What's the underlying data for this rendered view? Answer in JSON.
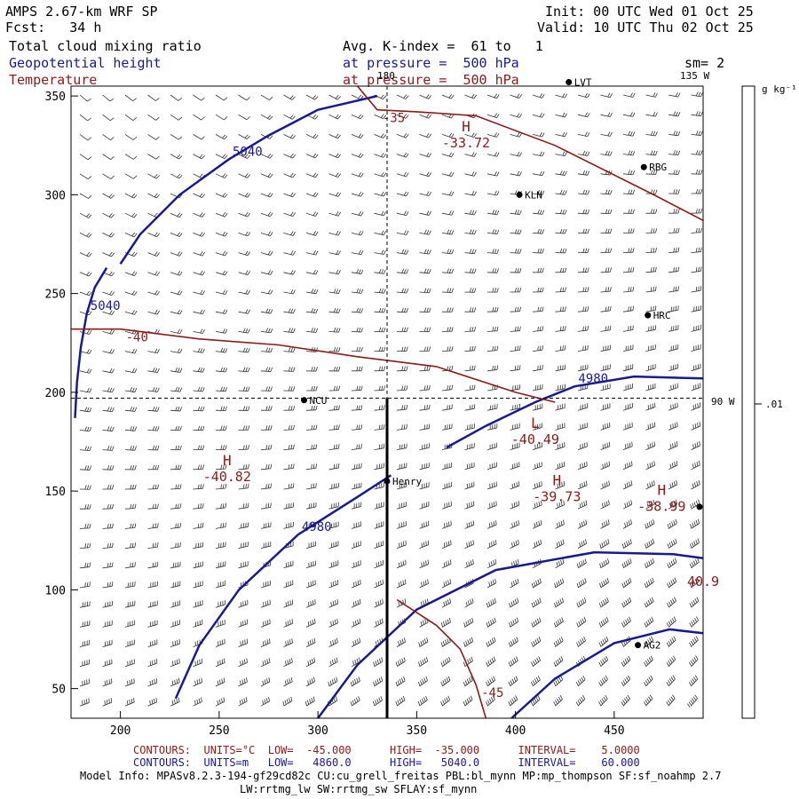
{
  "header": {
    "model": "AMPS 2.67-km WRF SP",
    "fcst": "Fcst:   34 h",
    "init": "Init: 00 UTC Wed 01 Oct 25",
    "valid": "Valid: 10 UTC Thu 02 Oct 25",
    "field1": "Total cloud mixing ratio",
    "field1_info": "Avg. K-index =  61 to   1",
    "field2": "Geopotential height",
    "field2_info": "at pressure =  500 hPa",
    "field3": "Temperature",
    "field3_info": "at pressure =  500 hPa",
    "sm": "sm= 2",
    "lon_135": "135 W",
    "lon_90": "90 W",
    "lon_180": "180"
  },
  "colorbar": {
    "unit": "g kg⁻¹",
    "value": ".01"
  },
  "colors": {
    "height": "#1a1a8c",
    "temperature": "#8b1a1a",
    "cross": "#000000"
  },
  "footer": {
    "temp_contours": "CONTOURS:  UNITS=°C  LOW=  -45.000      HIGH=  -35.000      INTERVAL=    5.0000",
    "height_contours": "CONTOURS:  UNITS=m   LOW=   4860.0      HIGH=   5040.0      INTERVAL=    60.000",
    "model_info": "Model Info: MPASv8.2.3-194-gf29cd82c CU:cu_grell_freitas PBL:bl_mynn MP:mp_thompson SF:sf_noahmp 2.7",
    "model_info2": "LW:rrtmg_lw SW:rrtmg_sw SFLAY:sf_mynn"
  },
  "chart_data": {
    "type": "contour_map",
    "xlim": [
      175,
      495
    ],
    "ylim": [
      35,
      355
    ],
    "x_ticks": [
      200,
      250,
      300,
      350,
      400,
      450
    ],
    "y_ticks": [
      50,
      100,
      150,
      200,
      250,
      300,
      350
    ],
    "height_contours": [
      {
        "label": "5040",
        "points": [
          [
            177,
            187
          ],
          [
            178,
            205
          ],
          [
            180,
            223
          ],
          [
            183,
            240
          ],
          [
            187,
            253
          ],
          [
            193,
            263
          ]
        ]
      },
      {
        "label": "5040",
        "points": [
          [
            200,
            265
          ],
          [
            210,
            280
          ],
          [
            230,
            300
          ],
          [
            255,
            318
          ],
          [
            275,
            330
          ],
          [
            300,
            343
          ],
          [
            330,
            350
          ]
        ]
      },
      {
        "label": "4980",
        "points": [
          [
            365,
            172
          ],
          [
            385,
            183
          ],
          [
            410,
            195
          ],
          [
            430,
            203
          ],
          [
            460,
            208
          ],
          [
            495,
            207
          ]
        ]
      },
      {
        "label": "4980",
        "points": [
          [
            228,
            45
          ],
          [
            240,
            72
          ],
          [
            260,
            100
          ],
          [
            290,
            128
          ],
          [
            320,
            147
          ],
          [
            337,
            158
          ]
        ]
      },
      {
        "label": "",
        "points": [
          [
            300,
            35
          ],
          [
            320,
            62
          ],
          [
            350,
            90
          ],
          [
            390,
            110
          ],
          [
            440,
            119
          ],
          [
            480,
            118
          ],
          [
            495,
            116
          ]
        ]
      },
      {
        "label": "",
        "points": [
          [
            398,
            35
          ],
          [
            420,
            55
          ],
          [
            450,
            73
          ],
          [
            478,
            80
          ],
          [
            495,
            78
          ]
        ]
      }
    ],
    "temperature_contours": [
      {
        "label": "-35",
        "points": [
          [
            320,
            355
          ],
          [
            330,
            343
          ],
          [
            350,
            342
          ],
          [
            380,
            340
          ],
          [
            420,
            325
          ],
          [
            470,
            300
          ],
          [
            495,
            287
          ]
        ]
      },
      {
        "label": "-40",
        "points": [
          [
            175,
            232
          ],
          [
            200,
            232
          ],
          [
            240,
            227
          ],
          [
            280,
            224
          ],
          [
            320,
            218
          ],
          [
            360,
            213
          ],
          [
            400,
            200
          ],
          [
            420,
            195
          ]
        ]
      },
      {
        "label": "-45",
        "points": [
          [
            385,
            35
          ],
          [
            380,
            52
          ],
          [
            372,
            70
          ],
          [
            360,
            82
          ],
          [
            340,
            95
          ]
        ]
      }
    ],
    "extrema": [
      {
        "type": "H",
        "value": "-33.72",
        "x": 375,
        "y": 332
      },
      {
        "type": "H",
        "value": "-40.82",
        "x": 254,
        "y": 163
      },
      {
        "type": "L",
        "value": "-40.49",
        "x": 410,
        "y": 182
      },
      {
        "type": "H",
        "value": "-39.73",
        "x": 421,
        "y": 153
      },
      {
        "type": "H",
        "value": "-38.99",
        "x": 474,
        "y": 148
      },
      {
        "type": "",
        "value": "40.9",
        "x": 495,
        "y": 110
      }
    ],
    "stations": [
      {
        "name": "LVT",
        "x": 427,
        "y": 357
      },
      {
        "name": "RBG",
        "x": 465,
        "y": 314
      },
      {
        "name": "KLN",
        "x": 402,
        "y": 300
      },
      {
        "name": "HRC",
        "x": 467,
        "y": 239
      },
      {
        "name": "NCU",
        "x": 293,
        "y": 196
      },
      {
        "name": "Henry",
        "x": 335,
        "y": 155
      },
      {
        "name": "",
        "x": 495,
        "y": 142
      },
      {
        "name": "AG2",
        "x": 462,
        "y": 72
      }
    ],
    "cross": {
      "x": 335,
      "y": 197
    }
  }
}
